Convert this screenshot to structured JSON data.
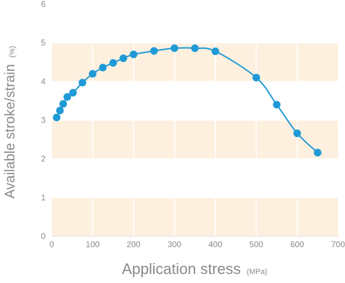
{
  "chart_data": {
    "type": "line",
    "xlabel": "Application stress",
    "xlabel_unit": "(MPa)",
    "ylabel": "Available stroke/strain",
    "ylabel_unit": "(%)",
    "xlim": [
      0,
      700
    ],
    "ylim": [
      0,
      6
    ],
    "x_ticks": [
      "0",
      "100",
      "200",
      "300",
      "400",
      "500",
      "600",
      "700"
    ],
    "y_ticks": [
      "0",
      "1",
      "2",
      "3",
      "4",
      "5",
      "6"
    ],
    "grid": true,
    "series": [
      {
        "color": "#1f9ad6",
        "points": [
          {
            "x": 12,
            "y": 3.07
          },
          {
            "x": 20,
            "y": 3.25
          },
          {
            "x": 28,
            "y": 3.42
          },
          {
            "x": 38,
            "y": 3.6
          },
          {
            "x": 52,
            "y": 3.71
          },
          {
            "x": 75,
            "y": 3.97
          },
          {
            "x": 100,
            "y": 4.2
          },
          {
            "x": 125,
            "y": 4.36
          },
          {
            "x": 150,
            "y": 4.48
          },
          {
            "x": 175,
            "y": 4.6
          },
          {
            "x": 200,
            "y": 4.7
          },
          {
            "x": 250,
            "y": 4.79
          },
          {
            "x": 300,
            "y": 4.86
          },
          {
            "x": 350,
            "y": 4.86
          },
          {
            "x": 400,
            "y": 4.78
          },
          {
            "x": 500,
            "y": 4.1
          },
          {
            "x": 550,
            "y": 3.4
          },
          {
            "x": 600,
            "y": 2.66
          },
          {
            "x": 650,
            "y": 2.16
          }
        ]
      }
    ],
    "colors": {
      "band": "#fdf0df",
      "grid": "#ffffff",
      "axis": "#dddddd",
      "text": "#8a8a8a"
    }
  }
}
